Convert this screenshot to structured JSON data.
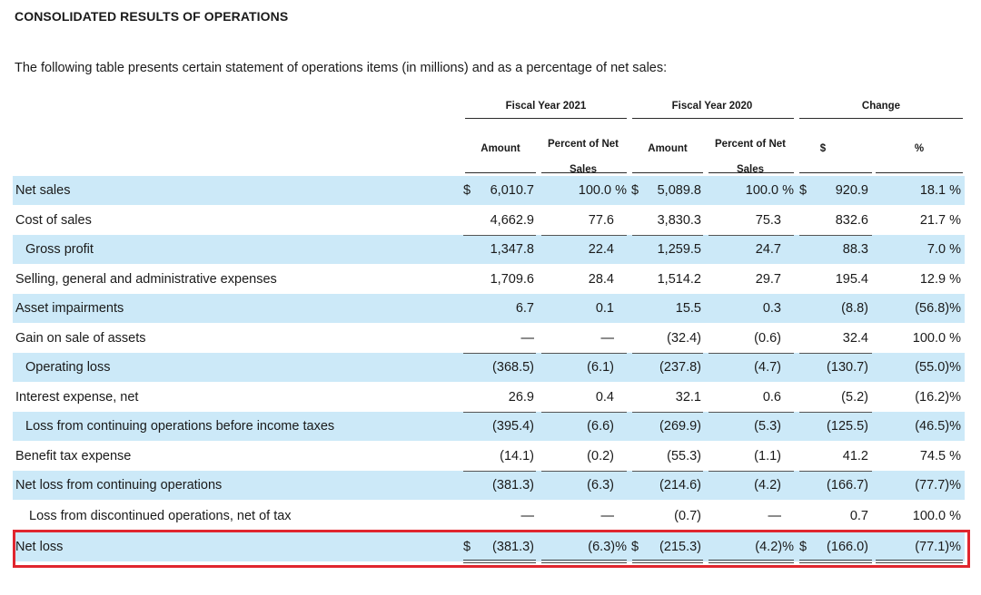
{
  "title": "CONSOLIDATED RESULTS OF OPERATIONS",
  "intro": "The following table presents certain statement of operations items (in millions) and as a percentage of net sales:",
  "headers": {
    "fy2021": "Fiscal Year 2021",
    "fy2020": "Fiscal Year 2020",
    "change": "Change",
    "amount": "Amount",
    "percent_line1": "Percent of Net",
    "percent_line2": "Sales",
    "dollar": "$",
    "pct": "%"
  },
  "rows": [
    {
      "label": "Net sales",
      "a21": "6,010.7",
      "p21": "100.0 %",
      "a20": "5,089.8",
      "p20": "100.0 %",
      "cd": "920.9",
      "cp": "18.1 %",
      "s21": "$",
      "s20": "$",
      "sc": "$"
    },
    {
      "label": "Cost of sales",
      "a21": "4,662.9",
      "p21": "77.6",
      "a20": "3,830.3",
      "p20": "75.3",
      "cd": "832.6",
      "cp": "21.7 %",
      "s21": "",
      "s20": "",
      "sc": ""
    },
    {
      "label": "Gross profit",
      "a21": "1,347.8",
      "p21": "22.4",
      "a20": "1,259.5",
      "p20": "24.7",
      "cd": "88.3",
      "cp": "7.0 %",
      "s21": "",
      "s20": "",
      "sc": ""
    },
    {
      "label": "Selling, general and administrative expenses",
      "a21": "1,709.6",
      "p21": "28.4",
      "a20": "1,514.2",
      "p20": "29.7",
      "cd": "195.4",
      "cp": "12.9 %",
      "s21": "",
      "s20": "",
      "sc": ""
    },
    {
      "label": "Asset impairments",
      "a21": "6.7",
      "p21": "0.1",
      "a20": "15.5",
      "p20": "0.3",
      "cd": "(8.8)",
      "cp": "(56.8)%",
      "s21": "",
      "s20": "",
      "sc": ""
    },
    {
      "label": "Gain on sale of assets",
      "a21": "—",
      "p21": "—",
      "a20": "(32.4)",
      "p20": "(0.6)",
      "cd": "32.4",
      "cp": "100.0 %",
      "s21": "",
      "s20": "",
      "sc": ""
    },
    {
      "label": "Operating loss",
      "a21": "(368.5)",
      "p21": "(6.1)",
      "a20": "(237.8)",
      "p20": "(4.7)",
      "cd": "(130.7)",
      "cp": "(55.0)%",
      "s21": "",
      "s20": "",
      "sc": ""
    },
    {
      "label": "Interest expense, net",
      "a21": "26.9",
      "p21": "0.4",
      "a20": "32.1",
      "p20": "0.6",
      "cd": "(5.2)",
      "cp": "(16.2)%",
      "s21": "",
      "s20": "",
      "sc": ""
    },
    {
      "label": "Loss from continuing operations before income taxes",
      "a21": "(395.4)",
      "p21": "(6.6)",
      "a20": "(269.9)",
      "p20": "(5.3)",
      "cd": "(125.5)",
      "cp": "(46.5)%",
      "s21": "",
      "s20": "",
      "sc": ""
    },
    {
      "label": "Benefit tax expense",
      "a21": "(14.1)",
      "p21": "(0.2)",
      "a20": "(55.3)",
      "p20": "(1.1)",
      "cd": "41.2",
      "cp": "74.5 %",
      "s21": "",
      "s20": "",
      "sc": ""
    },
    {
      "label": "Net loss from continuing operations",
      "a21": "(381.3)",
      "p21": "(6.3)",
      "a20": "(214.6)",
      "p20": "(4.2)",
      "cd": "(166.7)",
      "cp": "(77.7)%",
      "s21": "",
      "s20": "",
      "sc": ""
    },
    {
      "label": "Loss from discontinued operations, net of tax",
      "a21": "—",
      "p21": "—",
      "a20": "(0.7)",
      "p20": "—",
      "cd": "0.7",
      "cp": "100.0 %",
      "s21": "",
      "s20": "",
      "sc": ""
    },
    {
      "label": "Net loss",
      "a21": "(381.3)",
      "p21": "(6.3)%",
      "a20": "(215.3)",
      "p20": "(4.2)%",
      "cd": "(166.0)",
      "cp": "(77.1)%",
      "s21": "$",
      "s20": "$",
      "sc": "$"
    }
  ],
  "colors": {
    "row_shade": "#cce9f8",
    "highlight_border": "#e0262e"
  }
}
